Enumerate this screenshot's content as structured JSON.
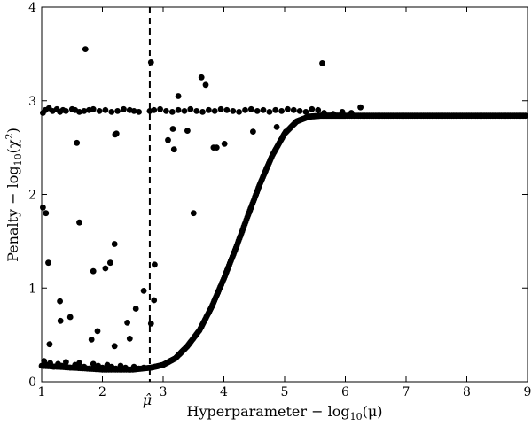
{
  "chart_data": {
    "type": "scatter",
    "title": "",
    "xlabel": "Hyperparameter − log₁₀(μ)",
    "ylabel": "Penalty − log₁₀(χ²)",
    "xlim": [
      1,
      9
    ],
    "ylim": [
      0,
      4
    ],
    "xticks": [
      "1",
      "2",
      "3",
      "4",
      "5",
      "6",
      "7",
      "8",
      "9"
    ],
    "yticks": [
      "0",
      "1",
      "2",
      "3",
      "4"
    ],
    "grid": false,
    "legend": "none",
    "marker_color": "#000000",
    "vline": {
      "x": 2.78,
      "style": "dashed",
      "label": "μ̂"
    },
    "curve": {
      "x": [
        1.0,
        1.5,
        2.0,
        2.5,
        2.8,
        3.0,
        3.2,
        3.4,
        3.6,
        3.8,
        4.0,
        4.2,
        4.4,
        4.6,
        4.8,
        5.0,
        5.2,
        5.4,
        5.6,
        5.8,
        6.0,
        6.5,
        7.0,
        7.5,
        8.0,
        8.5,
        9.0
      ],
      "y": [
        0.17,
        0.15,
        0.13,
        0.13,
        0.15,
        0.18,
        0.25,
        0.38,
        0.55,
        0.8,
        1.1,
        1.43,
        1.78,
        2.12,
        2.42,
        2.65,
        2.78,
        2.83,
        2.84,
        2.84,
        2.84,
        2.84,
        2.84,
        2.84,
        2.84,
        2.84,
        2.84
      ]
    },
    "series": [
      {
        "x": [
          1.02,
          1.06,
          1.12,
          1.18,
          1.25,
          1.3,
          1.35,
          1.4,
          1.5,
          1.55,
          1.62,
          1.7,
          1.78,
          1.85,
          1.95,
          2.05,
          2.15,
          2.25,
          2.35,
          2.45,
          2.52,
          2.6,
          2.78,
          2.85,
          2.95,
          3.05,
          3.15,
          3.25,
          3.35,
          3.45,
          3.55,
          3.65,
          3.75,
          3.85,
          3.95,
          4.05,
          4.15,
          4.25,
          4.35,
          4.45,
          4.55,
          4.65,
          4.75,
          4.85,
          4.95,
          5.05,
          5.15,
          5.25,
          5.35,
          5.45,
          5.55,
          5.65,
          5.8,
          5.95,
          6.1,
          6.25
        ],
        "y": [
          2.87,
          2.9,
          2.92,
          2.89,
          2.91,
          2.88,
          2.9,
          2.89,
          2.91,
          2.9,
          2.88,
          2.89,
          2.9,
          2.91,
          2.89,
          2.9,
          2.88,
          2.89,
          2.91,
          2.9,
          2.89,
          2.88,
          2.89,
          2.9,
          2.91,
          2.89,
          2.88,
          2.9,
          2.89,
          2.91,
          2.89,
          2.88,
          2.9,
          2.89,
          2.91,
          2.9,
          2.89,
          2.88,
          2.9,
          2.91,
          2.89,
          2.9,
          2.88,
          2.9,
          2.89,
          2.91,
          2.9,
          2.89,
          2.88,
          2.91,
          2.9,
          2.87,
          2.86,
          2.88,
          2.87,
          2.93
        ]
      },
      {
        "x": [
          1.04,
          1.08,
          1.14,
          1.2,
          1.27,
          1.33,
          1.4,
          1.47,
          1.55,
          1.62,
          1.7,
          1.78,
          1.85,
          1.93,
          2.0,
          2.08,
          2.15,
          2.22,
          2.3,
          2.38,
          2.45,
          2.52,
          2.6,
          2.68
        ],
        "y": [
          0.22,
          0.18,
          0.2,
          0.16,
          0.19,
          0.17,
          0.21,
          0.15,
          0.18,
          0.2,
          0.16,
          0.14,
          0.19,
          0.17,
          0.15,
          0.18,
          0.16,
          0.14,
          0.17,
          0.15,
          0.13,
          0.16,
          0.14,
          0.15
        ]
      },
      {
        "x": [
          1.72,
          2.8,
          3.63,
          3.7,
          5.62,
          3.25,
          3.08,
          3.18,
          3.4,
          2.23,
          3.88,
          3.83,
          3.16,
          4.01,
          4.48,
          4.87,
          5.02,
          1.58,
          2.21
        ],
        "y": [
          3.55,
          3.41,
          3.25,
          3.17,
          3.4,
          3.05,
          2.58,
          2.48,
          2.68,
          2.65,
          2.5,
          2.5,
          2.7,
          2.54,
          2.67,
          2.72,
          2.67,
          2.55,
          2.64
        ]
      },
      {
        "x": [
          1.02,
          1.07,
          1.11,
          1.3,
          1.47,
          1.62,
          1.85,
          2.05,
          2.13,
          2.2,
          2.68,
          2.8,
          2.86,
          3.5,
          2.41,
          2.45,
          2.55,
          2.85,
          1.31,
          1.82,
          1.13,
          2.2,
          1.92
        ],
        "y": [
          1.86,
          1.8,
          1.27,
          0.86,
          0.69,
          1.7,
          1.18,
          1.21,
          1.27,
          1.47,
          0.97,
          0.62,
          1.25,
          1.8,
          0.63,
          0.46,
          0.78,
          0.87,
          0.65,
          0.45,
          0.4,
          0.38,
          0.54
        ]
      }
    ]
  },
  "axes": {
    "x_label_prefix": "Hyperparameter",
    "x_label_func": "log",
    "x_label_sub": "10",
    "x_label_arg": "(μ)",
    "y_label_prefix": "Penalty",
    "y_label_func": "log",
    "y_label_sub": "10",
    "y_label_arg": "(χ",
    "y_label_sup": "2",
    "y_label_close": ")",
    "minus": "−",
    "vline_label": "μ̂"
  }
}
